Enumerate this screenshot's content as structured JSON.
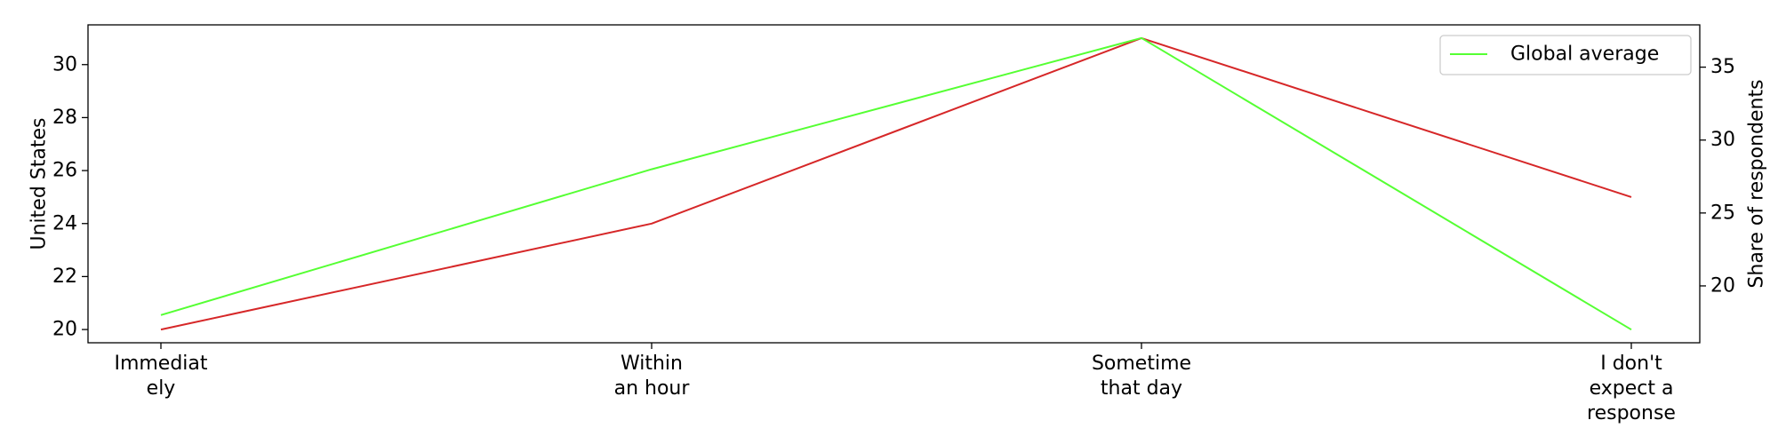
{
  "chart_data": {
    "type": "line",
    "categories": [
      "Immediately",
      "Within an hour",
      "Sometime that day",
      "I don't expect a response"
    ],
    "category_tick_labels": [
      [
        "Immediat",
        "ely"
      ],
      [
        "Within",
        "an hour"
      ],
      [
        "Sometime",
        "that day"
      ],
      [
        "I don't",
        "expect a",
        "response"
      ]
    ],
    "series": [
      {
        "name": "",
        "axis": "left",
        "color": "#d62728",
        "values": [
          20,
          24,
          31,
          25
        ]
      },
      {
        "name": "Global average",
        "axis": "right",
        "color": "#55ff33",
        "values": [
          18,
          28,
          37,
          17
        ]
      }
    ],
    "ylabel": "United States",
    "ylabel_right": "Share of respondents",
    "ylim": [
      19.5,
      31.5
    ],
    "ylim_right": [
      16.1,
      37.9
    ],
    "yticks": [
      20,
      22,
      24,
      26,
      28,
      30
    ],
    "yticks_right": [
      20,
      25,
      30,
      35
    ],
    "grid": false,
    "legend_placement": "top-right"
  }
}
